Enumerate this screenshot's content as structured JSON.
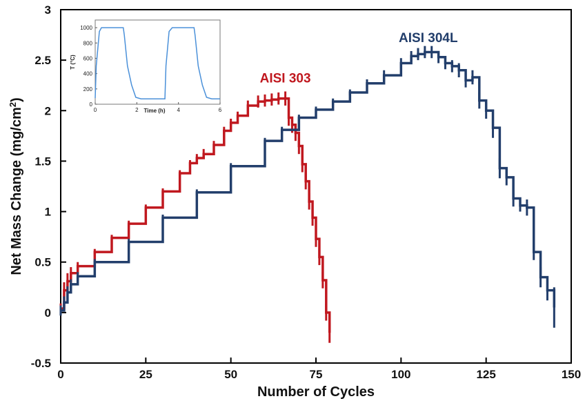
{
  "chart_data": [
    {
      "type": "line",
      "xlabel": "Number of Cycles",
      "ylabel": "Net Mass Change (mg/cm",
      "ylabel_sup": "2",
      "ylabel_end": ")",
      "xlim": [
        0,
        150
      ],
      "ylim": [
        -0.5,
        3
      ],
      "xticks": [
        0,
        25,
        50,
        75,
        100,
        125,
        150
      ],
      "xtick_labels": [
        "0",
        "25",
        "50",
        "75",
        "100",
        "125",
        "150"
      ],
      "yticks": [
        -0.5,
        0,
        0.5,
        1,
        1.5,
        2,
        2.5,
        3
      ],
      "ytick_labels": [
        "-0.5",
        "0",
        "0.5",
        "1",
        "1.5",
        "2",
        "2.5",
        "3"
      ],
      "grid": false,
      "series": [
        {
          "name": "AISI 303",
          "color": "#c0181f",
          "style": "error-bar steps",
          "x": [
            0,
            1,
            2,
            3,
            5,
            10,
            15,
            20,
            25,
            30,
            35,
            38,
            40,
            42,
            45,
            48,
            50,
            52,
            55,
            58,
            60,
            62,
            64,
            66,
            67,
            68,
            69,
            70,
            71,
            72,
            73,
            74,
            75,
            76,
            77,
            78,
            79
          ],
          "y": [
            0.04,
            0.22,
            0.31,
            0.39,
            0.46,
            0.6,
            0.74,
            0.88,
            1.04,
            1.2,
            1.38,
            1.48,
            1.53,
            1.57,
            1.66,
            1.8,
            1.88,
            1.95,
            2.05,
            2.09,
            2.1,
            2.11,
            2.12,
            2.12,
            1.93,
            1.86,
            1.78,
            1.65,
            1.47,
            1.3,
            1.1,
            0.94,
            0.73,
            0.55,
            0.32,
            0.0,
            -0.2
          ],
          "err": [
            0.05,
            0.08,
            0.08,
            0.06,
            0.04,
            0.03,
            0.03,
            0.03,
            0.03,
            0.03,
            0.03,
            0.03,
            0.04,
            0.05,
            0.04,
            0.04,
            0.04,
            0.04,
            0.05,
            0.06,
            0.06,
            0.06,
            0.06,
            0.07,
            0.08,
            0.08,
            0.08,
            0.08,
            0.08,
            0.08,
            0.08,
            0.08,
            0.08,
            0.08,
            0.08,
            0.08,
            0.1
          ]
        },
        {
          "name": "AISI 304L",
          "color": "#223e6b",
          "style": "error-bar steps",
          "x": [
            0,
            1,
            2,
            3,
            5,
            10,
            20,
            30,
            40,
            50,
            60,
            65,
            70,
            75,
            80,
            85,
            90,
            95,
            100,
            103,
            105,
            107,
            109,
            111,
            113,
            115,
            117,
            119,
            121,
            123,
            125,
            127,
            129,
            131,
            133,
            135,
            137,
            139,
            141,
            143,
            145
          ],
          "y": [
            0.02,
            0.1,
            0.2,
            0.28,
            0.36,
            0.5,
            0.7,
            0.94,
            1.19,
            1.45,
            1.7,
            1.81,
            1.93,
            2.01,
            2.09,
            2.18,
            2.27,
            2.35,
            2.47,
            2.54,
            2.56,
            2.58,
            2.58,
            2.53,
            2.47,
            2.44,
            2.4,
            2.3,
            2.33,
            2.1,
            2.0,
            1.83,
            1.43,
            1.34,
            1.13,
            1.06,
            1.04,
            0.6,
            0.35,
            0.22,
            0.05
          ],
          "err": [
            0.05,
            0.06,
            0.06,
            0.05,
            0.04,
            0.03,
            0.03,
            0.03,
            0.03,
            0.03,
            0.03,
            0.03,
            0.03,
            0.03,
            0.03,
            0.03,
            0.04,
            0.05,
            0.05,
            0.05,
            0.06,
            0.06,
            0.06,
            0.06,
            0.06,
            0.06,
            0.07,
            0.07,
            0.07,
            0.08,
            0.08,
            0.1,
            0.1,
            0.08,
            0.08,
            0.06,
            0.08,
            0.08,
            0.1,
            0.1,
            0.2
          ]
        }
      ],
      "annotations": [
        {
          "text": "AISI 303",
          "color": "#c0181f",
          "x": 66,
          "y": 2.28
        },
        {
          "text": "AISI 304L",
          "color": "#223e6b",
          "x": 108,
          "y": 2.68
        }
      ]
    },
    {
      "type": "line",
      "role": "inset",
      "xlabel": "Time (h)",
      "ylabel": "T (°C)",
      "xlim": [
        0,
        6
      ],
      "ylim": [
        0,
        1100
      ],
      "xticks": [
        0,
        2,
        4,
        6
      ],
      "xtick_labels": [
        "0",
        "2",
        "4",
        "6"
      ],
      "yticks": [
        0,
        200,
        400,
        600,
        800,
        1000
      ],
      "ytick_labels": [
        "0",
        "200",
        "400",
        "600",
        "800",
        "1000"
      ],
      "series": [
        {
          "name": "",
          "color": "#4a90d9",
          "x": [
            0,
            0.05,
            0.2,
            0.3,
            1.35,
            1.4,
            1.55,
            1.75,
            1.95,
            2.2,
            2.5,
            3.35,
            3.4,
            3.55,
            3.7,
            4.75,
            4.8,
            4.95,
            5.15,
            5.35,
            5.6,
            6.0
          ],
          "y": [
            80,
            500,
            950,
            1000,
            1000,
            900,
            500,
            250,
            90,
            70,
            70,
            70,
            500,
            950,
            1000,
            1000,
            900,
            500,
            250,
            90,
            70,
            70
          ]
        }
      ]
    }
  ]
}
